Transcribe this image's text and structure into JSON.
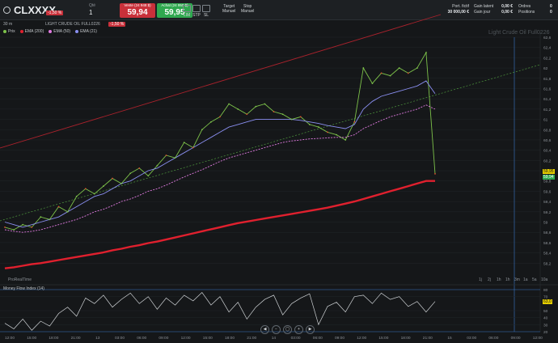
{
  "toolbar": {
    "symbol": "CLXXXX",
    "prev_change_label": "-1,50 %",
    "quantity_label": "Qté",
    "quantity": "1",
    "sell": {
      "label": "Vente (24 948 $)",
      "price": "59,94"
    },
    "buy": {
      "label": "Achat (24 950 $)",
      "price": "59,95"
    },
    "order_buttons": [
      "LIM",
      "STP",
      "SL"
    ],
    "target_buttons": [
      {
        "label": "Manuel",
        "top": "Target"
      },
      {
        "label": "Manuel",
        "top": "Stop"
      }
    ]
  },
  "account": {
    "left_labels": [
      "Port. fictif",
      "30 000,00 €"
    ],
    "mid_labels": [
      "Gain latent",
      "Gain jour"
    ],
    "mid_values": [
      "0,00 €",
      "0,00 €"
    ],
    "right_labels": [
      "Ordres",
      "Positions"
    ],
    "right_values": [
      "0",
      "0"
    ]
  },
  "chart_header": {
    "timeframe": "30 m",
    "instrument": "LIGHT CRUDE OIL FULL0226",
    "change_badge": "-1,50 %"
  },
  "legend": [
    {
      "label": "Prix",
      "color": "#7dc24a"
    },
    {
      "label": "EMA (200)",
      "color": "#e0202e"
    },
    {
      "label": "EMA (50)",
      "color": "#e07ae0"
    },
    {
      "label": "EMA (21)",
      "color": "#8a8ff0"
    }
  ],
  "watermark": "Light Crude Oil Full0226",
  "price_tags": {
    "last": "59,95",
    "mid": "59,94"
  },
  "footer_left": "ProRealTime",
  "timeframe_buttons": [
    "1j",
    "2j",
    "1h",
    "1h",
    "3m",
    "1a",
    "5a",
    "10a"
  ],
  "indicator": {
    "title": "Money Flow Index (14)",
    "value": "63,0"
  },
  "chart_data": [
    {
      "type": "line",
      "title": "LIGHT CRUDE OIL FULL0226",
      "ylim": [
        58.0,
        62.6
      ],
      "y_ticks": [
        "62,6",
        "62,4",
        "62,2",
        "62",
        "61,8",
        "61,6",
        "61,4",
        "61,2",
        "61",
        "60,8",
        "60,6",
        "60,4",
        "60,2",
        "60",
        "59,8",
        "59,6",
        "59,4",
        "59,2",
        "59",
        "58,8",
        "58,6",
        "58,4",
        "58,2"
      ],
      "series": [
        {
          "name": "Prix",
          "values": [
            58.9,
            58.85,
            58.95,
            58.9,
            59.1,
            59.05,
            59.3,
            59.2,
            59.5,
            59.65,
            59.55,
            59.7,
            59.85,
            59.75,
            59.95,
            60.05,
            59.9,
            60.1,
            60.3,
            60.25,
            60.55,
            60.45,
            60.8,
            60.95,
            61.05,
            61.3,
            61.2,
            61.1,
            61.25,
            61.3,
            61.15,
            61.1,
            61.0,
            61.05,
            60.9,
            60.85,
            60.75,
            60.7,
            60.6,
            60.95,
            62.0,
            61.7,
            61.9,
            61.85,
            62.0,
            61.9,
            62.0,
            62.3,
            59.94
          ]
        },
        {
          "name": "EMA (21)",
          "values": [
            59.0,
            58.95,
            58.9,
            58.95,
            59.0,
            59.05,
            59.1,
            59.2,
            59.3,
            59.4,
            59.5,
            59.55,
            59.65,
            59.75,
            59.8,
            59.9,
            60.0,
            60.05,
            60.15,
            60.25,
            60.35,
            60.45,
            60.55,
            60.65,
            60.75,
            60.85,
            60.9,
            60.95,
            61.0,
            61.0,
            61.0,
            61.0,
            61.0,
            60.98,
            60.95,
            60.92,
            60.88,
            60.85,
            60.82,
            60.9,
            61.2,
            61.35,
            61.45,
            61.5,
            61.55,
            61.6,
            61.65,
            61.75,
            61.5
          ]
        },
        {
          "name": "EMA (50)",
          "values": [
            58.85,
            58.82,
            58.8,
            58.82,
            58.85,
            58.9,
            58.95,
            59.0,
            59.05,
            59.12,
            59.2,
            59.25,
            59.32,
            59.4,
            59.45,
            59.52,
            59.6,
            59.65,
            59.72,
            59.8,
            59.88,
            59.95,
            60.02,
            60.1,
            60.18,
            60.25,
            60.3,
            60.35,
            60.4,
            60.45,
            60.5,
            60.55,
            60.58,
            60.6,
            60.62,
            60.63,
            60.64,
            60.65,
            60.65,
            60.7,
            60.82,
            60.9,
            60.98,
            61.05,
            61.1,
            61.15,
            61.2,
            61.28,
            61.2
          ]
        },
        {
          "name": "EMA (200)",
          "values": [
            58.1,
            58.12,
            58.15,
            58.18,
            58.2,
            58.23,
            58.26,
            58.29,
            58.32,
            58.35,
            58.38,
            58.41,
            58.45,
            58.48,
            58.52,
            58.55,
            58.59,
            58.62,
            58.66,
            58.7,
            58.74,
            58.78,
            58.82,
            58.86,
            58.9,
            58.94,
            58.98,
            59.01,
            59.04,
            59.07,
            59.1,
            59.13,
            59.16,
            59.19,
            59.22,
            59.25,
            59.28,
            59.32,
            59.36,
            59.4,
            59.45,
            59.5,
            59.55,
            59.6,
            59.65,
            59.7,
            59.75,
            59.8,
            59.8
          ]
        }
      ]
    },
    {
      "type": "line",
      "title": "Money Flow Index (14)",
      "ylim": [
        20,
        80
      ],
      "y_ticks": [
        "80",
        "70",
        "50",
        "40",
        "30",
        "20"
      ],
      "x_ticks": [
        "12:00",
        "15:00",
        "18:00",
        "21:00",
        "13",
        "03:00",
        "06:00",
        "09:00",
        "12:00",
        "15:00",
        "18:00",
        "21:00",
        "14",
        "03:00",
        "06:00",
        "09:00",
        "12:00",
        "15:00",
        "18:00",
        "21:00",
        "15",
        "03:00",
        "06:00",
        "09:00",
        "12:00"
      ],
      "series": [
        {
          "name": "Money Flow Index (14)",
          "values": [
            32,
            24,
            38,
            22,
            35,
            28,
            46,
            55,
            42,
            68,
            60,
            72,
            55,
            66,
            75,
            60,
            70,
            52,
            68,
            58,
            72,
            64,
            76,
            58,
            70,
            48,
            62,
            38,
            55,
            66,
            72,
            44,
            60,
            68,
            74,
            30,
            56,
            62,
            48,
            70,
            72,
            60,
            75,
            66,
            70,
            56,
            63,
            48,
            63
          ]
        }
      ]
    }
  ]
}
